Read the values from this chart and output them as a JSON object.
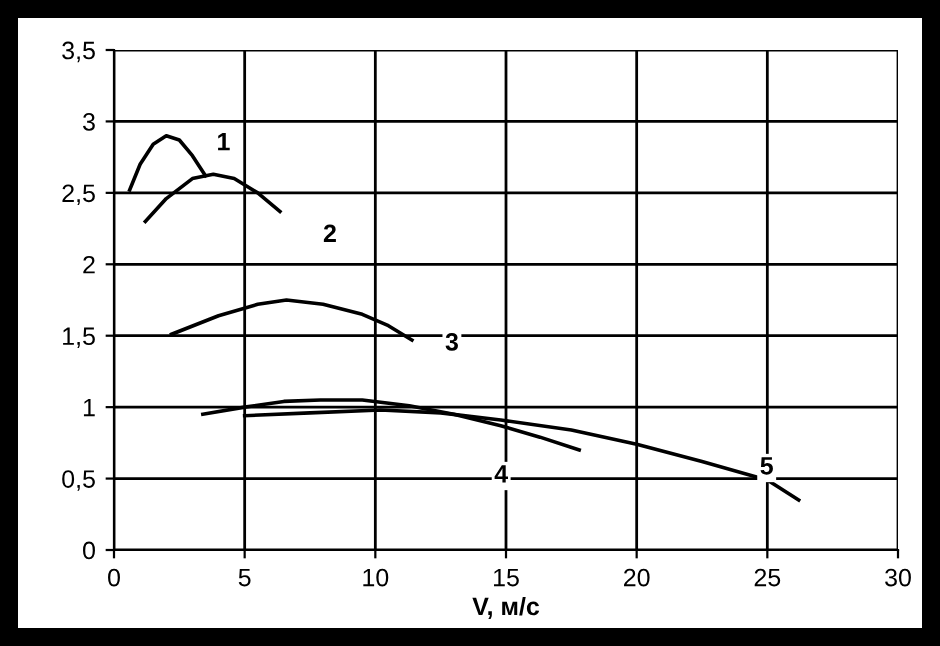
{
  "chart_data": {
    "type": "line",
    "xlabel": "V, м/с",
    "xlim": [
      0,
      30
    ],
    "xticks": [
      0,
      5,
      10,
      15,
      20,
      25,
      30
    ],
    "ylim": [
      0,
      3.5
    ],
    "yticks": [
      {
        "value": 0,
        "label": "0"
      },
      {
        "value": 0.5,
        "label": "0,5"
      },
      {
        "value": 1,
        "label": "1"
      },
      {
        "value": 1.5,
        "label": "1,5"
      },
      {
        "value": 2,
        "label": "2"
      },
      {
        "value": 2.5,
        "label": "2,5"
      },
      {
        "value": 3,
        "label": "3"
      },
      {
        "value": 3.5,
        "label": "3,5"
      }
    ],
    "grid": true,
    "marker": "none",
    "line_style": "solid",
    "series": [
      {
        "name": "1",
        "color": "#000000",
        "x": [
          0.6,
          1.0,
          1.5,
          2.0,
          2.5,
          3.0,
          3.5
        ],
        "values": [
          2.52,
          2.7,
          2.84,
          2.9,
          2.87,
          2.76,
          2.62
        ]
      },
      {
        "name": "2",
        "color": "#000000",
        "x": [
          1.2,
          2.0,
          3.0,
          3.8,
          4.6,
          5.5,
          6.35
        ],
        "values": [
          2.3,
          2.46,
          2.6,
          2.63,
          2.6,
          2.5,
          2.37
        ]
      },
      {
        "name": "3",
        "color": "#000000",
        "x": [
          2.2,
          4.0,
          5.5,
          6.6,
          8.0,
          9.5,
          10.5,
          11.4
        ],
        "values": [
          1.51,
          1.64,
          1.72,
          1.75,
          1.72,
          1.65,
          1.57,
          1.47
        ]
      },
      {
        "name": "4",
        "color": "#000000",
        "x": [
          3.4,
          5.0,
          6.5,
          7.9,
          9.5,
          11.3,
          13.0,
          14.8,
          16.3,
          17.8
        ],
        "values": [
          0.95,
          1.0,
          1.04,
          1.05,
          1.05,
          1.01,
          0.95,
          0.87,
          0.79,
          0.7
        ]
      },
      {
        "name": "5",
        "color": "#000000",
        "x": [
          5.0,
          7.5,
          10.2,
          12.5,
          14.8,
          17.5,
          20.0,
          22.5,
          25.0,
          26.2
        ],
        "values": [
          0.94,
          0.96,
          0.98,
          0.96,
          0.91,
          0.84,
          0.74,
          0.62,
          0.49,
          0.35
        ]
      }
    ]
  }
}
